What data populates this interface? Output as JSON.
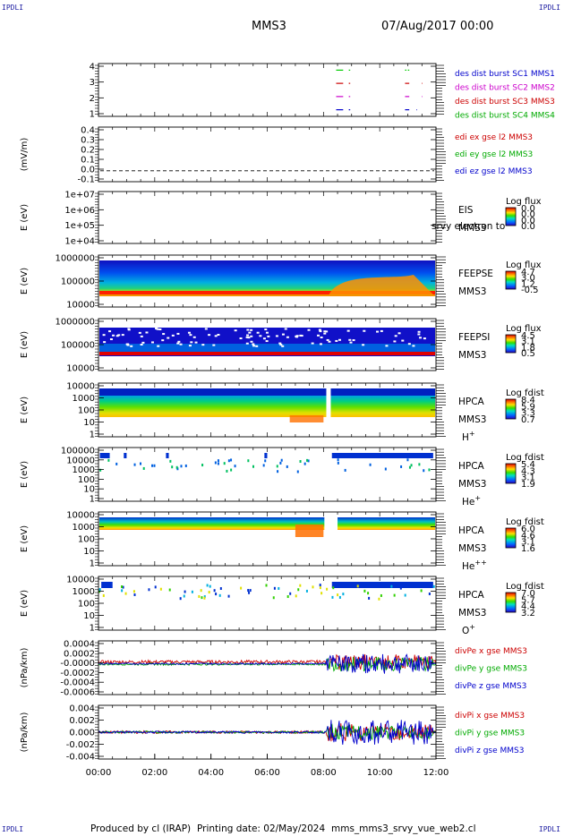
{
  "header": {
    "corner_left_top": "IPDLI",
    "corner_right_top": "IPDLI",
    "corner_left_bottom": "IPDLI",
    "corner_right_bottom": "IPDLI",
    "spacecraft": "MMS3",
    "date": "07/Aug/2017 00:00"
  },
  "footer": {
    "produced": "Produced by cl (IRAP)",
    "printing": "Printing date: 02/May/2024",
    "file": "mms_mms3_srvy_vue_web2.cl"
  },
  "chart_data": {
    "type": "stacked-timeseries",
    "x_ticks": [
      "00:00",
      "02:00",
      "04:00",
      "06:00",
      "08:00",
      "10:00",
      "12:00"
    ],
    "x_range": [
      "00:00",
      "12:00"
    ],
    "panels": [
      {
        "id": "burst",
        "type": "timeline",
        "ylabel": "",
        "ylim": [
          0.5,
          4.5
        ],
        "y_ticks": [
          "4",
          "3",
          "2",
          "1"
        ],
        "legend": [
          {
            "label": "des dist burst SC1 MMS1",
            "color": "#0000cc"
          },
          {
            "label": "des dist burst SC2 MMS2",
            "color": "#cc00cc"
          },
          {
            "label": "des dist burst SC3 MMS3",
            "color": "#cc0000"
          },
          {
            "label": "des dist burst SC4 MMS4",
            "color": "#00aa00"
          }
        ],
        "series": [
          {
            "level": 4,
            "color": "#00cc00",
            "hours": [
              [
                8.45,
                8.7
              ],
              [
                8.9,
                8.95
              ],
              [
                10.9,
                10.95
              ],
              [
                11.0,
                11.05
              ]
            ]
          },
          {
            "level": 3,
            "color": "#cc0000",
            "hours": [
              [
                8.45,
                8.7
              ],
              [
                8.9,
                8.95
              ],
              [
                10.9,
                11.05
              ],
              [
                11.5,
                11.52
              ]
            ]
          },
          {
            "level": 2,
            "color": "#cc00cc",
            "hours": [
              [
                8.45,
                8.7
              ],
              [
                8.9,
                8.95
              ],
              [
                10.9,
                11.05
              ],
              [
                11.5,
                11.52
              ]
            ]
          },
          {
            "level": 1,
            "color": "#0000cc",
            "hours": [
              [
                8.45,
                8.7
              ],
              [
                8.9,
                8.95
              ],
              [
                10.9,
                11.05
              ],
              [
                11.3,
                11.32
              ]
            ]
          }
        ]
      },
      {
        "id": "edi",
        "type": "line",
        "ylabel": "(mV/m)",
        "ylim": [
          -0.1,
          0.4
        ],
        "y_ticks": [
          "0.4",
          "0.3",
          "0.2",
          "0.1",
          "0.0",
          "-0.1"
        ],
        "legend": [
          {
            "label": "edi ex gse l2 MMS3",
            "color": "#cc0000"
          },
          {
            "label": "edi ey gse l2 MMS3",
            "color": "#00aa00"
          },
          {
            "label": "edi ez gse l2 MMS3",
            "color": "#0000cc"
          }
        ],
        "dashed_zero": true
      },
      {
        "id": "eis",
        "type": "spectrogram",
        "ylabel": "E (eV)",
        "y_ticks": [
          "1e+07",
          "1e+06",
          "1e+05",
          "1e+04"
        ],
        "side_labels": [
          "EIS",
          "MMS3"
        ],
        "overflow_label": "srvy electron to",
        "cbar_title": "Log flux",
        "cbar_ticks": [
          "0.0",
          "0.0",
          "0.0",
          "0.0"
        ]
      },
      {
        "id": "feepse",
        "type": "spectrogram",
        "ylabel": "E (eV)",
        "y_ticks": [
          "1000000",
          "100000",
          "10000"
        ],
        "side_labels": [
          "FEEPSE",
          "MMS3"
        ],
        "cbar_title": "Log flux",
        "cbar_ticks": [
          "4.7",
          "3.0",
          "1.2",
          "-0.5"
        ]
      },
      {
        "id": "feepsi",
        "type": "spectrogram",
        "ylabel": "E (eV)",
        "y_ticks": [
          "1000000",
          "100000",
          "10000"
        ],
        "side_labels": [
          "FEEPSI",
          "MMS3"
        ],
        "cbar_title": "Log flux",
        "cbar_ticks": [
          "4.5",
          "3.1",
          "1.8",
          "0.5"
        ]
      },
      {
        "id": "hpca_h",
        "type": "spectrogram",
        "ylabel": "E (eV)",
        "y_ticks": [
          "10000",
          "1000",
          "100",
          "10",
          "1"
        ],
        "side_labels": [
          "HPCA",
          "MMS3"
        ],
        "species": "H",
        "species_sup": "+",
        "cbar_title": "Log fdist",
        "cbar_ticks": [
          "8.4",
          "5.9",
          "3.3",
          "0.7"
        ]
      },
      {
        "id": "hpca_he",
        "type": "spectrogram",
        "ylabel": "E (eV)",
        "y_ticks": [
          "100000",
          "10000",
          "1000",
          "100",
          "10",
          "1"
        ],
        "side_labels": [
          "HPCA",
          "MMS3"
        ],
        "species": "He",
        "species_sup": "+",
        "cbar_title": "Log fdist",
        "cbar_ticks": [
          "5.4",
          "4.3",
          "3.1",
          "1.9"
        ]
      },
      {
        "id": "hpca_hepp",
        "type": "spectrogram",
        "ylabel": "E (eV)",
        "y_ticks": [
          "10000",
          "1000",
          "100",
          "10",
          "1"
        ],
        "side_labels": [
          "HPCA",
          "MMS3"
        ],
        "species": "He",
        "species_sup": "++",
        "cbar_title": "Log fdist",
        "cbar_ticks": [
          "6.0",
          "4.6",
          "3.1",
          "1.6"
        ]
      },
      {
        "id": "hpca_o",
        "type": "spectrogram",
        "ylabel": "E (eV)",
        "y_ticks": [
          "10000",
          "1000",
          "100",
          "10",
          "1"
        ],
        "side_labels": [
          "HPCA",
          "MMS3"
        ],
        "species": "O",
        "species_sup": "+",
        "cbar_title": "Log fdist",
        "cbar_ticks": [
          "7.0",
          "5.7",
          "4.4",
          "3.2"
        ]
      },
      {
        "id": "divpe",
        "type": "line",
        "ylabel": "(nPa/km)",
        "ylim": [
          -0.0007,
          0.0005
        ],
        "y_ticks": [
          "0.0004",
          "0.0002",
          "-0.0000",
          "-0.0002",
          "-0.0004",
          "-0.0006"
        ],
        "legend": [
          {
            "label": "divPe x gse MMS3",
            "color": "#cc0000"
          },
          {
            "label": "divPe y gse MMS3",
            "color": "#00aa00"
          },
          {
            "label": "divPe z gse MMS3",
            "color": "#0000cc"
          }
        ]
      },
      {
        "id": "divpi",
        "type": "line",
        "ylabel": "(nPa/km)",
        "ylim": [
          -0.006,
          0.006
        ],
        "y_ticks": [
          "0.004",
          "0.002",
          "0.000",
          "-0.002",
          "-0.004"
        ],
        "legend": [
          {
            "label": "divPi x gse MMS3",
            "color": "#cc0000"
          },
          {
            "label": "divPi y gse MMS3",
            "color": "#00aa00"
          },
          {
            "label": "divPi z gse MMS3",
            "color": "#0000cc"
          }
        ]
      }
    ]
  }
}
